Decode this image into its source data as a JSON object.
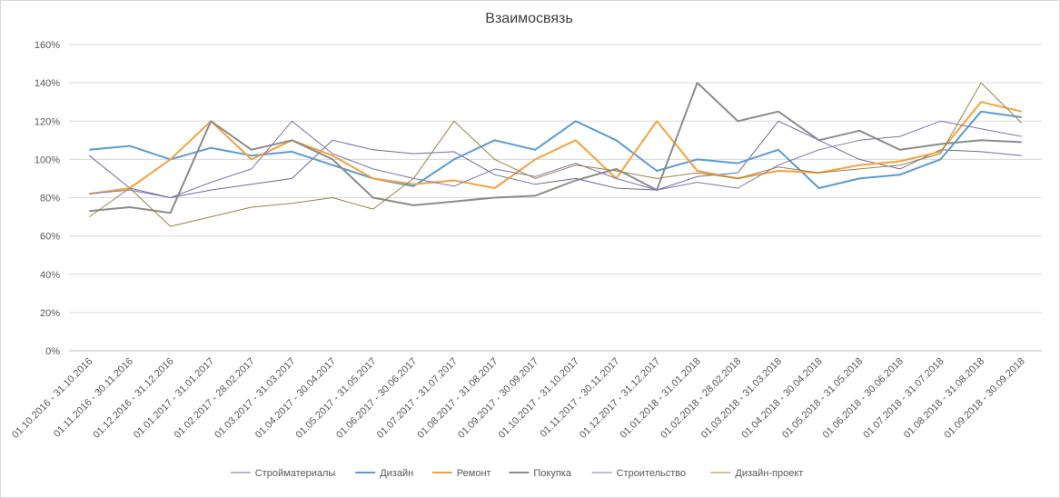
{
  "chart_data": {
    "type": "line",
    "title": "Взаимосвязь",
    "xlabel": "",
    "ylabel": "",
    "ylim": [
      0,
      160
    ],
    "y_tick_labels": [
      "0%",
      "20%",
      "40%",
      "60%",
      "80%",
      "100%",
      "120%",
      "140%",
      "160%"
    ],
    "grid": true,
    "legend_position": "bottom",
    "categories": [
      "01.10.2016 - 31.10.2016",
      "01.11.2016 - 30.11.2016",
      "01.12.2016 - 31.12.2016",
      "01.01.2017 - 31.01.2017",
      "01.02.2017 - 28.02.2017",
      "01.03.2017 - 31.03.2017",
      "01.04.2017 - 30.04.2017",
      "01.05.2017 - 31.05.2017",
      "01.06.2017 - 30.06.2017",
      "01.07.2017 - 31.07.2017",
      "01.08.2017 - 31.08.2017",
      "01.09.2017 - 30.09.2017",
      "01.10.2017 - 31.10.2017",
      "01.11.2017 - 30.11.2017",
      "01.12.2017 - 31.12.2017",
      "01.01.2018 - 31.01.2018",
      "01.02.2018 - 28.02.2018",
      "01.03.2018 - 31.03.2018",
      "01.04.2018 - 30.04.2018",
      "01.05.2018 - 31.05.2018",
      "01.06.2018 - 30.06.2018",
      "01.07.2018 - 31.07.2018",
      "01.08.2018 - 31.08.2018",
      "01.09.2018 - 30.09.2018"
    ],
    "series": [
      {
        "name": "Стройматериалы",
        "color": "#6b6aa0",
        "width": 1,
        "values": [
          102,
          85,
          80,
          84,
          87,
          90,
          110,
          105,
          103,
          104,
          92,
          87,
          90,
          85,
          84,
          91,
          93,
          120,
          110,
          100,
          95,
          105,
          104,
          102
        ]
      },
      {
        "name": "Дизайн",
        "color": "#5b9bd5",
        "width": 2,
        "values": [
          105,
          107,
          100,
          106,
          102,
          104,
          97,
          90,
          86,
          100,
          110,
          105,
          120,
          110,
          94,
          100,
          98,
          105,
          85,
          90,
          92,
          100,
          125,
          122
        ]
      },
      {
        "name": "Ремонт",
        "color": "#f4a23c",
        "width": 2,
        "values": [
          82,
          85,
          100,
          120,
          100,
          110,
          102,
          90,
          87,
          89,
          85,
          100,
          110,
          90,
          120,
          94,
          90,
          94,
          93,
          97,
          99,
          104,
          130,
          125
        ]
      },
      {
        "name": "Покупка",
        "color": "#8c8c8c",
        "width": 2,
        "values": [
          73,
          75,
          72,
          120,
          105,
          110,
          100,
          80,
          76,
          78,
          80,
          81,
          89,
          95,
          84,
          140,
          120,
          125,
          110,
          115,
          105,
          108,
          110,
          109
        ]
      },
      {
        "name": "Строительство",
        "color": "#7a76b3",
        "width": 1,
        "values": [
          82,
          84,
          80,
          88,
          95,
          120,
          103,
          95,
          90,
          86,
          95,
          91,
          98,
          90,
          84,
          88,
          85,
          97,
          105,
          110,
          112,
          120,
          116,
          112
        ]
      },
      {
        "name": "Дизайн-проект",
        "color": "#9c8245",
        "width": 1,
        "values": [
          70,
          85,
          65,
          70,
          75,
          77,
          80,
          74,
          90,
          120,
          100,
          90,
          97,
          94,
          90,
          93,
          90,
          96,
          93,
          95,
          97,
          103,
          140,
          119
        ]
      }
    ]
  }
}
